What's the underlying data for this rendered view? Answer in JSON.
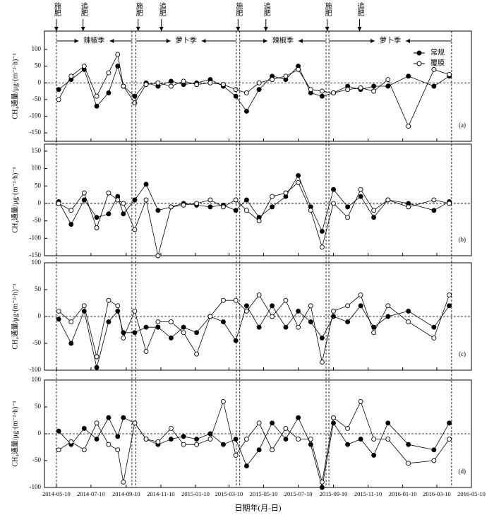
{
  "chart_data": [
    {
      "type": "line",
      "panel_label": "(a)",
      "y_label": "CH₄通量/μg·(m⁻²·h)⁻¹",
      "annotations": [
        {
          "text": "施肥",
          "x": "2014-05-10"
        },
        {
          "text": "追肥",
          "x": "2014-06-26"
        },
        {
          "text": "施肥",
          "x": "2014-10-01"
        },
        {
          "text": "追肥",
          "x": "2014-11-11"
        },
        {
          "text": "施肥",
          "x": "2015-03-26"
        },
        {
          "text": "追肥",
          "x": "2015-05-14"
        },
        {
          "text": "施肥",
          "x": "2015-08-30"
        },
        {
          "text": "追肥",
          "x": "2015-10-26"
        }
      ],
      "seasons": [
        {
          "label": "辣椒季",
          "start": "2014-05-10",
          "end": "2014-09-20"
        },
        {
          "label": "萝卜季",
          "start": "2014-09-27",
          "end": "2015-03-23"
        },
        {
          "label": "辣椒季",
          "start": "2015-03-29",
          "end": "2015-08-28"
        },
        {
          "label": "萝卜季",
          "start": "2015-09-02",
          "end": "2016-04-05"
        }
      ],
      "event_lines": [
        "2014-05-10",
        "2014-09-20",
        "2014-09-27",
        "2015-03-23",
        "2015-03-29",
        "2015-08-28",
        "2015-09-02",
        "2016-04-05"
      ],
      "legend": "upper right",
      "x": [
        "2014-05-14",
        "2014-06-05",
        "2014-06-28",
        "2014-07-20",
        "2014-08-10",
        "2014-08-26",
        "2014-09-05",
        "2014-09-25",
        "2014-10-15",
        "2014-11-05",
        "2014-11-28",
        "2014-12-20",
        "2015-01-12",
        "2015-02-05",
        "2015-02-28",
        "2015-03-22",
        "2015-04-10",
        "2015-05-02",
        "2015-05-25",
        "2015-06-18",
        "2015-07-10",
        "2015-08-01",
        "2015-08-21",
        "2015-09-10",
        "2015-10-05",
        "2015-10-28",
        "2015-11-20",
        "2015-12-15",
        "2016-01-20",
        "2016-03-05",
        "2016-04-01"
      ],
      "series": [
        {
          "name": "常规",
          "color": "#000000",
          "marker": "filled",
          "values": [
            -20,
            10,
            40,
            -70,
            -30,
            50,
            -10,
            -40,
            0,
            -10,
            5,
            -5,
            0,
            10,
            -10,
            -40,
            -85,
            -20,
            20,
            10,
            50,
            -30,
            -40,
            -30,
            -10,
            -20,
            -10,
            -10,
            20,
            -10,
            20
          ]
        },
        {
          "name": "覆膜",
          "color": "#000000",
          "marker": "open",
          "values": [
            -50,
            20,
            50,
            -40,
            30,
            85,
            -10,
            -60,
            -5,
            0,
            -10,
            5,
            -5,
            0,
            -5,
            -20,
            -30,
            0,
            10,
            20,
            40,
            -20,
            -25,
            -30,
            -20,
            -15,
            -25,
            10,
            -130,
            40,
            25
          ]
        }
      ],
      "ylim": [
        -175,
        155
      ],
      "yticks": [
        -150,
        -100,
        -50,
        0,
        50,
        100
      ]
    },
    {
      "type": "line",
      "panel_label": "(b)",
      "y_label": "CH₄通量/μg·(m⁻²·h)⁻¹",
      "x": [
        "2014-05-14",
        "2014-06-05",
        "2014-06-28",
        "2014-07-20",
        "2014-08-10",
        "2014-08-26",
        "2014-09-05",
        "2014-09-25",
        "2014-10-15",
        "2014-11-05",
        "2014-11-28",
        "2014-12-20",
        "2015-01-12",
        "2015-02-05",
        "2015-02-28",
        "2015-03-22",
        "2015-04-10",
        "2015-05-02",
        "2015-05-25",
        "2015-06-18",
        "2015-07-10",
        "2015-08-01",
        "2015-08-21",
        "2015-09-10",
        "2015-10-05",
        "2015-10-28",
        "2015-11-20",
        "2015-12-15",
        "2016-01-20",
        "2016-03-05",
        "2016-04-01"
      ],
      "series": [
        {
          "name": "常规",
          "color": "#000000",
          "marker": "filled",
          "values": [
            5,
            -60,
            10,
            -40,
            -30,
            20,
            -30,
            10,
            55,
            -20,
            -10,
            0,
            -5,
            -10,
            -5,
            -20,
            10,
            -40,
            -10,
            20,
            80,
            -10,
            -80,
            40,
            -10,
            20,
            -40,
            10,
            0,
            -20,
            5
          ]
        },
        {
          "name": "覆膜",
          "color": "#000000",
          "marker": "open",
          "values": [
            0,
            -20,
            30,
            -70,
            30,
            10,
            0,
            -75,
            10,
            -150,
            -10,
            -5,
            0,
            10,
            -10,
            10,
            -20,
            -50,
            20,
            30,
            60,
            -20,
            -125,
            0,
            -40,
            40,
            -20,
            10,
            -10,
            10,
            0
          ]
        }
      ],
      "ylim": [
        -150,
        170
      ],
      "yticks": [
        -150,
        -100,
        -50,
        0,
        50,
        100,
        150
      ]
    },
    {
      "type": "line",
      "panel_label": "(c)",
      "y_label": "CH₄通量/μg·(m⁻²·h)⁻¹",
      "x": [
        "2014-05-14",
        "2014-06-05",
        "2014-06-28",
        "2014-07-20",
        "2014-08-10",
        "2014-08-26",
        "2014-09-05",
        "2014-09-25",
        "2014-10-15",
        "2014-11-05",
        "2014-11-28",
        "2014-12-20",
        "2015-01-12",
        "2015-02-05",
        "2015-02-28",
        "2015-03-22",
        "2015-04-10",
        "2015-05-02",
        "2015-05-25",
        "2015-06-18",
        "2015-07-10",
        "2015-08-01",
        "2015-08-21",
        "2015-09-10",
        "2015-10-05",
        "2015-10-28",
        "2015-11-20",
        "2015-12-15",
        "2016-01-20",
        "2016-03-05",
        "2016-04-01"
      ],
      "series": [
        {
          "name": "常规",
          "color": "#000000",
          "marker": "filled",
          "values": [
            -5,
            -50,
            10,
            -95,
            -10,
            10,
            -30,
            -30,
            -20,
            -20,
            -40,
            -20,
            -30,
            0,
            -10,
            -45,
            20,
            -20,
            20,
            -20,
            10,
            -10,
            -40,
            0,
            -10,
            20,
            -20,
            0,
            10,
            -20,
            20
          ]
        },
        {
          "name": "覆膜",
          "color": "#000000",
          "marker": "open",
          "values": [
            10,
            -10,
            20,
            -75,
            30,
            20,
            -40,
            10,
            -65,
            -10,
            -10,
            -30,
            -70,
            0,
            30,
            30,
            10,
            40,
            0,
            30,
            -20,
            20,
            -85,
            10,
            20,
            40,
            -30,
            20,
            -10,
            -40,
            40
          ]
        }
      ],
      "ylim": [
        -100,
        100
      ],
      "yticks": [
        -100,
        -50,
        0,
        50,
        100
      ]
    },
    {
      "type": "line",
      "panel_label": "(d)",
      "y_label": "CH₄通量/μg·(m⁻²·h)⁻¹",
      "x_label": "日期年(月-日)",
      "x": [
        "2014-05-14",
        "2014-06-05",
        "2014-06-28",
        "2014-07-20",
        "2014-08-10",
        "2014-08-26",
        "2014-09-05",
        "2014-09-25",
        "2014-10-15",
        "2014-11-05",
        "2014-11-28",
        "2014-12-20",
        "2015-01-12",
        "2015-02-05",
        "2015-02-28",
        "2015-03-22",
        "2015-04-10",
        "2015-05-02",
        "2015-05-25",
        "2015-06-18",
        "2015-07-10",
        "2015-08-01",
        "2015-08-21",
        "2015-09-10",
        "2015-10-05",
        "2015-10-28",
        "2015-11-20",
        "2015-12-15",
        "2016-01-20",
        "2016-03-05",
        "2016-04-01"
      ],
      "series": [
        {
          "name": "常规",
          "color": "#000000",
          "marker": "filled",
          "values": [
            5,
            -20,
            10,
            -10,
            30,
            -5,
            30,
            20,
            -10,
            -20,
            -10,
            -5,
            -10,
            0,
            -20,
            -10,
            -60,
            -30,
            20,
            -10,
            30,
            -20,
            -100,
            20,
            -20,
            -10,
            -40,
            20,
            -20,
            -30,
            20
          ]
        },
        {
          "name": "覆膜",
          "color": "#000000",
          "marker": "open",
          "values": [
            -30,
            -15,
            -30,
            20,
            -20,
            -30,
            -90,
            20,
            -10,
            -15,
            10,
            -20,
            -20,
            -10,
            60,
            -40,
            -10,
            20,
            -30,
            10,
            -10,
            -10,
            -90,
            30,
            10,
            60,
            -10,
            -10,
            -55,
            -50,
            -10
          ]
        }
      ],
      "ylim": [
        -100,
        100
      ],
      "yticks": [
        -100,
        -50,
        0,
        50,
        100
      ],
      "xlim": [
        "2014-04-19",
        "2016-05-10"
      ],
      "xticks": [
        "2014-05-10",
        "2014-07-10",
        "2014-09-10",
        "2014-11-10",
        "2015-01-10",
        "2015-03-10",
        "2015-05-10",
        "2015-07-10",
        "2015-09-10",
        "2015-11-10",
        "2016-01-10",
        "2016-03-10",
        "2016-05-10"
      ]
    }
  ]
}
